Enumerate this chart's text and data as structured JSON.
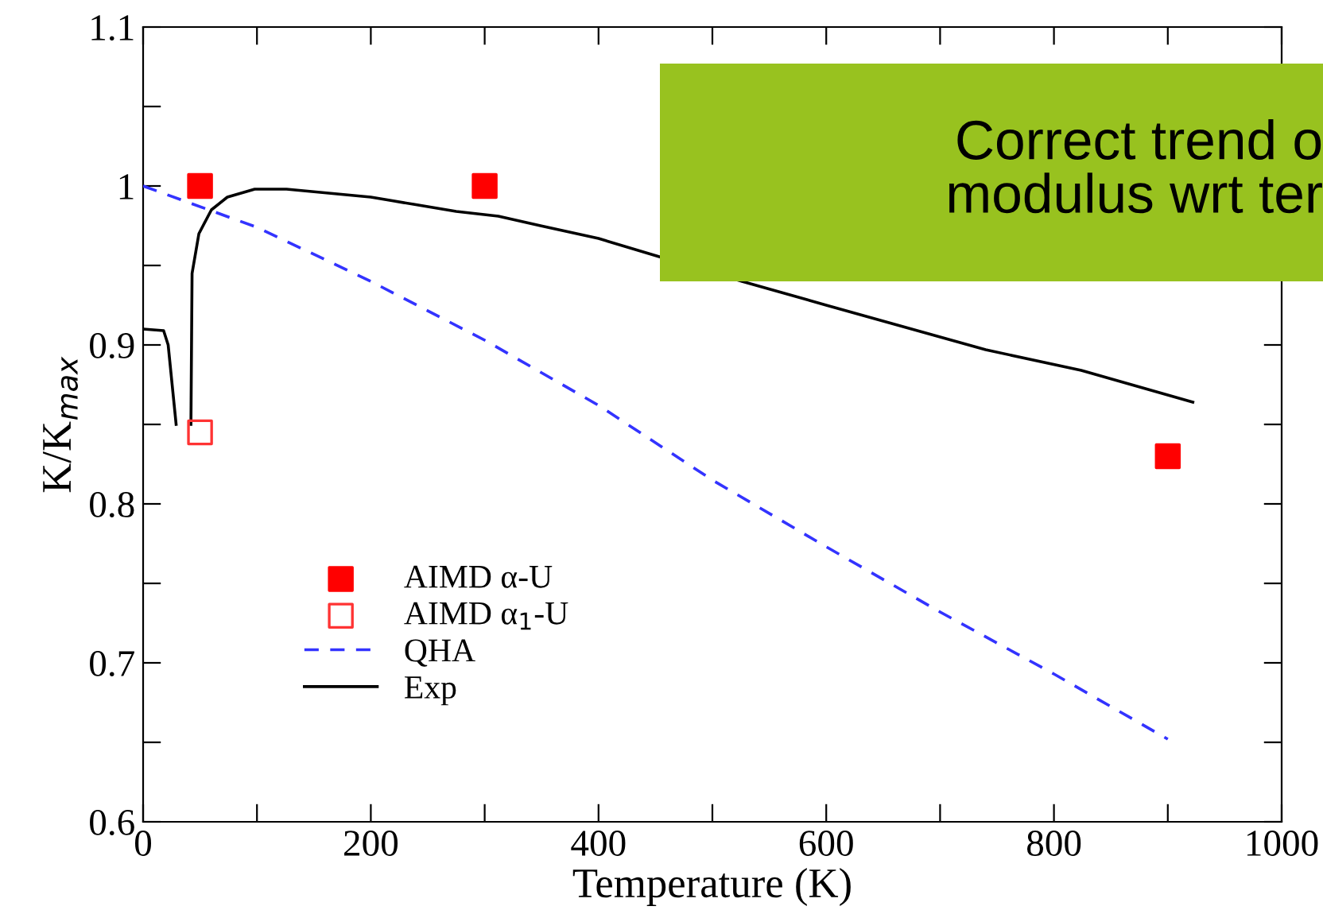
{
  "chart_data": {
    "type": "line",
    "xlabel": "Temperature (K)",
    "ylabel": "K/K$_{max}$",
    "xlim": [
      0,
      1000
    ],
    "ylim": [
      0.6,
      1.1
    ],
    "xticks": [
      0,
      {
        "value": 100,
        "label": null
      },
      200,
      {
        "value": 300,
        "label": null
      },
      400,
      {
        "value": 500,
        "label": null
      },
      600,
      {
        "value": 700,
        "label": null
      },
      800,
      {
        "value": 900,
        "label": null
      },
      1000
    ],
    "yticks": [
      0.6,
      {
        "value": 0.65,
        "label": null
      },
      0.7,
      {
        "value": 0.75,
        "label": null
      },
      0.8,
      {
        "value": 0.85,
        "label": null
      },
      0.9,
      {
        "value": 0.95,
        "label": null
      },
      1,
      {
        "value": 1.05,
        "label": null
      },
      1.1
    ],
    "grid": false,
    "legend": "bottom left",
    "annotations": [
      "Correct trend o\nmodulus wrt ter"
    ],
    "series": [
      {
        "name": "AIMD α-U",
        "type": "scatter",
        "marker": "square",
        "color": "#ff0000",
        "x": [
          50,
          300,
          900
        ],
        "values": [
          1.0,
          1.0,
          0.83
        ]
      },
      {
        "name": "AIMD α$_{1}$-U",
        "type": "scatter",
        "marker": "square",
        "color": "#ff3333",
        "x": [
          50
        ],
        "values": [
          0.845
        ]
      },
      {
        "name": "QHA",
        "line_style": "dashed",
        "color": "#3333ff",
        "x": [
          0,
          100,
          200,
          300,
          400,
          500,
          600,
          700,
          800,
          900
        ],
        "values": [
          1.0,
          0.974,
          0.94,
          0.903,
          0.862,
          0.815,
          0.773,
          0.732,
          0.693,
          0.652
        ]
      },
      {
        "name": "Exp",
        "line_style": "solid",
        "color": "#000000",
        "x": [
          0,
          18,
          22,
          29,
          35,
          42,
          43,
          49,
          60,
          74,
          98,
          126,
          200,
          275,
          312,
          349,
          400,
          451,
          526,
          600,
          740,
          824,
          922
        ],
        "values": [
          0.91,
          0.909,
          0.9,
          0.85,
          null,
          0.85,
          0.945,
          0.97,
          0.985,
          0.993,
          0.998,
          0.998,
          0.993,
          0.984,
          0.981,
          0.975,
          0.967,
          0.956,
          0.94,
          0.925,
          0.897,
          0.884,
          0.864
        ]
      }
    ]
  }
}
